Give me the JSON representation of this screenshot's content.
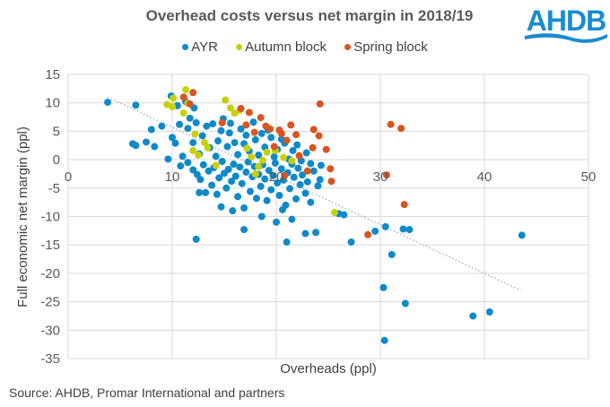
{
  "chart_data": {
    "type": "scatter",
    "title": "Overhead costs versus net margin in 2018/19",
    "xlabel": "Overheads (ppl)",
    "ylabel": "Full economic net margin (ppl)",
    "xlim": [
      0,
      50
    ],
    "ylim": [
      -35,
      15
    ],
    "xticks": [
      0,
      10,
      20,
      30,
      40,
      50
    ],
    "yticks": [
      15,
      10,
      5,
      0,
      -5,
      -10,
      -15,
      -20,
      -25,
      -30,
      -35
    ],
    "grid": true,
    "legend_position": "top",
    "trendline": {
      "style": "dotted",
      "color": "#a6b5c3",
      "x": [
        3.8,
        43.5
      ],
      "y": [
        11.0,
        -23.0
      ]
    },
    "series": [
      {
        "name": "AYR",
        "color": "#0f8ac9",
        "points": [
          [
            3.8,
            10.1
          ],
          [
            6.5,
            9.6
          ],
          [
            6.2,
            2.8
          ],
          [
            6.5,
            2.5
          ],
          [
            7.5,
            3.1
          ],
          [
            8.0,
            5.3
          ],
          [
            8.3,
            2.3
          ],
          [
            9.0,
            5.9
          ],
          [
            9.6,
            0.1
          ],
          [
            9.9,
            11.2
          ],
          [
            10.0,
            3.9
          ],
          [
            10.3,
            2.9
          ],
          [
            10.5,
            9.5
          ],
          [
            10.7,
            6.2
          ],
          [
            11.0,
            0.6
          ],
          [
            11.3,
            10.2
          ],
          [
            11.5,
            5.5
          ],
          [
            11.7,
            7.3
          ],
          [
            12.0,
            3.0
          ],
          [
            12.1,
            9.1
          ],
          [
            12.3,
            6.5
          ],
          [
            12.6,
            1.0
          ],
          [
            12.9,
            4.2
          ],
          [
            13.3,
            5.9
          ],
          [
            13.6,
            2.1
          ],
          [
            13.9,
            6.3
          ],
          [
            14.2,
            0.6
          ],
          [
            14.4,
            3.3
          ],
          [
            14.7,
            5.1
          ],
          [
            14.9,
            7.2
          ],
          [
            15.3,
            2.3
          ],
          [
            15.5,
            4.7
          ],
          [
            15.6,
            6.4
          ],
          [
            16.0,
            3.0
          ],
          [
            16.3,
            0.9
          ],
          [
            16.6,
            5.4
          ],
          [
            16.9,
            2.8
          ],
          [
            17.1,
            4.3
          ],
          [
            17.4,
            1.5
          ],
          [
            17.8,
            6.6
          ],
          [
            18.0,
            3.5
          ],
          [
            18.3,
            0.8
          ],
          [
            18.6,
            4.6
          ],
          [
            18.9,
            2.2
          ],
          [
            19.2,
            5.2
          ],
          [
            19.5,
            3.9
          ],
          [
            19.8,
            0.5
          ],
          [
            20.1,
            1.8
          ],
          [
            20.5,
            3.6
          ],
          [
            20.8,
            2.9
          ],
          [
            21.2,
            0.1
          ],
          [
            21.6,
            1.6
          ],
          [
            22.0,
            2.6
          ],
          [
            22.4,
            -0.2
          ],
          [
            22.9,
            1.2
          ],
          [
            23.3,
            -0.7
          ],
          [
            10.8,
            -1.1
          ],
          [
            11.5,
            -0.5
          ],
          [
            12.0,
            -1.8
          ],
          [
            12.4,
            -2.6
          ],
          [
            12.7,
            -3.5
          ],
          [
            13.0,
            -0.9
          ],
          [
            13.2,
            -5.8
          ],
          [
            13.5,
            -2.0
          ],
          [
            13.8,
            -4.5
          ],
          [
            14.0,
            -1.4
          ],
          [
            14.3,
            -6.1
          ],
          [
            14.5,
            -3.2
          ],
          [
            14.8,
            -0.3
          ],
          [
            15.0,
            -2.4
          ],
          [
            15.2,
            -5.0
          ],
          [
            15.4,
            -1.7
          ],
          [
            15.7,
            -3.8
          ],
          [
            15.9,
            -0.8
          ],
          [
            16.1,
            -2.9
          ],
          [
            16.3,
            -6.5
          ],
          [
            16.5,
            -1.3
          ],
          [
            16.7,
            -4.2
          ],
          [
            16.9,
            -8.5
          ],
          [
            17.1,
            -2.2
          ],
          [
            17.3,
            -0.4
          ],
          [
            17.5,
            -5.6
          ],
          [
            17.7,
            -3.0
          ],
          [
            17.9,
            -1.2
          ],
          [
            18.1,
            -6.8
          ],
          [
            18.3,
            -2.6
          ],
          [
            18.5,
            -4.7
          ],
          [
            18.7,
            -0.9
          ],
          [
            18.9,
            -3.4
          ],
          [
            19.1,
            -7.2
          ],
          [
            19.3,
            -1.9
          ],
          [
            19.5,
            -5.3
          ],
          [
            19.7,
            -2.8
          ],
          [
            19.9,
            -0.6
          ],
          [
            20.1,
            -4.1
          ],
          [
            20.3,
            -6.3
          ],
          [
            20.5,
            -1.6
          ],
          [
            20.7,
            -3.6
          ],
          [
            20.9,
            -8.0
          ],
          [
            21.1,
            -2.3
          ],
          [
            21.3,
            -5.1
          ],
          [
            21.5,
            -0.8
          ],
          [
            21.7,
            -3.1
          ],
          [
            21.9,
            -6.9
          ],
          [
            22.1,
            -1.5
          ],
          [
            22.3,
            -4.4
          ],
          [
            22.5,
            -2.7
          ],
          [
            22.8,
            -5.9
          ],
          [
            23.0,
            -3.9
          ],
          [
            23.3,
            -7.5
          ],
          [
            23.6,
            -2.0
          ],
          [
            24.0,
            -4.6
          ],
          [
            24.3,
            -1.0
          ],
          [
            15.8,
            -9.0
          ],
          [
            16.9,
            -12.3
          ],
          [
            12.3,
            -14.0
          ],
          [
            20.0,
            -11.0
          ],
          [
            21.0,
            -14.5
          ],
          [
            22.8,
            -13.0
          ],
          [
            21.5,
            -10.5
          ],
          [
            23.8,
            -12.8
          ],
          [
            26.0,
            -9.5
          ],
          [
            26.5,
            -9.7
          ],
          [
            27.2,
            -14.5
          ],
          [
            29.5,
            -12.6
          ],
          [
            30.5,
            -11.8
          ],
          [
            32.2,
            -12.2
          ],
          [
            32.8,
            -12.3
          ],
          [
            31.1,
            -16.7
          ],
          [
            30.3,
            -22.5
          ],
          [
            32.4,
            -25.3
          ],
          [
            30.4,
            -31.8
          ],
          [
            38.9,
            -27.5
          ],
          [
            40.5,
            -26.8
          ],
          [
            43.6,
            -13.3
          ],
          [
            18.6,
            -10.0
          ],
          [
            14.7,
            -8.3
          ],
          [
            12.6,
            -5.8
          ],
          [
            20.6,
            -8.8
          ],
          [
            24.2,
            -3.5
          ]
        ]
      },
      {
        "name": "Autumn block",
        "color": "#c7d10a",
        "points": [
          [
            9.5,
            9.7
          ],
          [
            10.0,
            9.3
          ],
          [
            10.1,
            10.8
          ],
          [
            11.1,
            8.2
          ],
          [
            11.3,
            12.3
          ],
          [
            11.5,
            9.9
          ],
          [
            12.0,
            1.6
          ],
          [
            12.2,
            4.5
          ],
          [
            13.1,
            3.0
          ],
          [
            13.4,
            2.1
          ],
          [
            15.1,
            10.5
          ],
          [
            15.6,
            9.1
          ],
          [
            16.0,
            8.2
          ],
          [
            16.5,
            8.7
          ],
          [
            17.2,
            2.0
          ],
          [
            17.6,
            0.5
          ],
          [
            18.0,
            -2.5
          ],
          [
            18.3,
            -1.2
          ],
          [
            18.7,
            -0.1
          ],
          [
            19.1,
            1.3
          ],
          [
            19.9,
            1.6
          ],
          [
            20.7,
            0.4
          ],
          [
            21.5,
            -0.2
          ],
          [
            25.6,
            -9.3
          ],
          [
            12.5,
            0.8
          ],
          [
            14.2,
            -1.0
          ]
        ]
      },
      {
        "name": "Spring block",
        "color": "#d9541e",
        "points": [
          [
            11.1,
            11.0
          ],
          [
            11.7,
            9.8
          ],
          [
            12.0,
            11.8
          ],
          [
            14.8,
            6.5
          ],
          [
            16.6,
            9.0
          ],
          [
            17.1,
            6.1
          ],
          [
            17.4,
            8.3
          ],
          [
            17.9,
            4.8
          ],
          [
            18.5,
            7.4
          ],
          [
            19.0,
            5.9
          ],
          [
            19.4,
            5.4
          ],
          [
            19.8,
            2.3
          ],
          [
            20.3,
            5.2
          ],
          [
            20.5,
            4.6
          ],
          [
            21.0,
            3.4
          ],
          [
            21.4,
            6.1
          ],
          [
            21.9,
            4.4
          ],
          [
            22.2,
            0.7
          ],
          [
            23.5,
            2.1
          ],
          [
            23.0,
            -2.0
          ],
          [
            24.1,
            4.2
          ],
          [
            24.8,
            1.8
          ],
          [
            25.2,
            -1.6
          ],
          [
            20.8,
            -2.8
          ],
          [
            25.3,
            -3.8
          ],
          [
            30.6,
            -2.7
          ],
          [
            32.3,
            -7.9
          ],
          [
            28.8,
            -13.2
          ],
          [
            23.6,
            5.3
          ],
          [
            31.0,
            6.2
          ],
          [
            32.0,
            5.5
          ],
          [
            24.2,
            9.8
          ]
        ]
      }
    ]
  },
  "legend": {
    "items": [
      {
        "label": "AYR",
        "color": "#0f8ac9"
      },
      {
        "label": "Autumn block",
        "color": "#c7d10a"
      },
      {
        "label": "Spring block",
        "color": "#d9541e"
      }
    ]
  },
  "logo": {
    "text": "AHDB",
    "color": "#1b8bd0"
  },
  "source": "Source: AHDB, Promar International  and partners"
}
